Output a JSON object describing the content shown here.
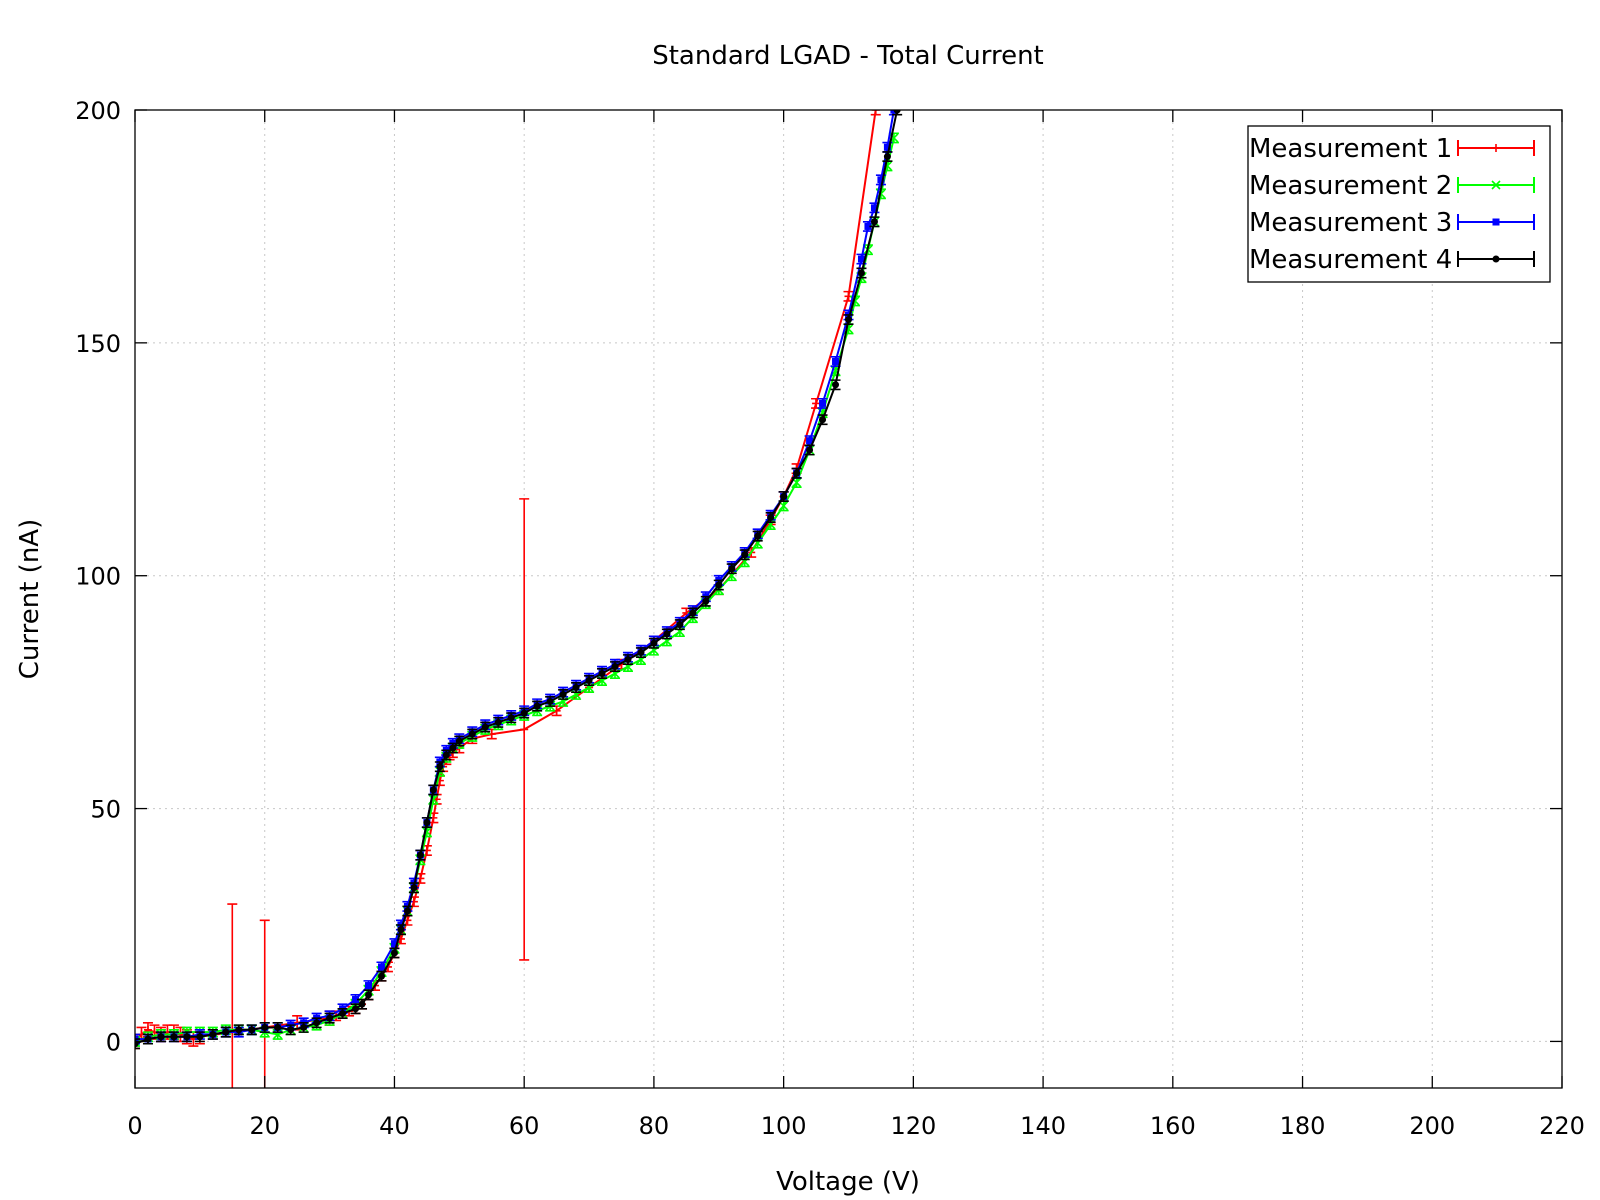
{
  "chart_data": {
    "type": "line",
    "title": "Standard LGAD - Total Current",
    "xlabel": "Voltage (V)",
    "ylabel": "Current (nA)",
    "xlim": [
      0,
      220
    ],
    "ylim": [
      -10,
      200
    ],
    "xticks": [
      "0",
      "20",
      "40",
      "60",
      "80",
      "100",
      "120",
      "140",
      "160",
      "180",
      "200",
      "220"
    ],
    "yticks": [
      "0",
      "50",
      "100",
      "150",
      "200"
    ],
    "grid": true,
    "legend_position": "top-right",
    "series": [
      {
        "name": "Measurement 1",
        "color": "#ff0000",
        "marker": "plus",
        "x": [
          0,
          1,
          2,
          3,
          4,
          5,
          6,
          7,
          8,
          9,
          10,
          15,
          20,
          25,
          30,
          31,
          32,
          33,
          34,
          35,
          36,
          37,
          38,
          39,
          40,
          41,
          42,
          43,
          44,
          45,
          46,
          46.5,
          47,
          47.5,
          48,
          48.5,
          49,
          50,
          52,
          55,
          60,
          65,
          70,
          75,
          80,
          85,
          90,
          95,
          98,
          100,
          102,
          105,
          110,
          114.2
        ],
        "y": [
          0,
          1.5,
          2.5,
          2,
          1.5,
          2,
          2,
          1.5,
          1,
          0.5,
          1,
          2,
          3,
          4,
          5,
          5.5,
          6,
          6.5,
          7,
          8,
          10,
          12,
          14,
          16,
          19,
          22,
          26,
          30,
          35,
          41,
          48,
          52,
          56,
          59,
          60.5,
          61.5,
          62,
          63,
          65,
          66,
          67,
          71,
          76,
          81,
          86,
          92,
          97,
          105,
          112,
          117,
          123,
          137,
          160,
          200
        ],
        "yerr": [
          1.5,
          1.5,
          1.5,
          1.5,
          1.5,
          1.5,
          1.5,
          1.5,
          1.5,
          1.5,
          1.5,
          27.5,
          23,
          1.5,
          1.5,
          1,
          1,
          1,
          1,
          1,
          1,
          1,
          1,
          1,
          1,
          1,
          1,
          1,
          1,
          1,
          1,
          1,
          1,
          1,
          1,
          1,
          1,
          1,
          1,
          1,
          49.5,
          1,
          1,
          1,
          1,
          1,
          1,
          1,
          1,
          1,
          1,
          1,
          1,
          1
        ]
      },
      {
        "name": "Measurement 2",
        "color": "#00ff00",
        "marker": "cross",
        "x": [
          0,
          2,
          4,
          6,
          8,
          10,
          12,
          14,
          16,
          18,
          20,
          22,
          24,
          26,
          28,
          30,
          32,
          34,
          36,
          38,
          40,
          41,
          42,
          43,
          44,
          45,
          46,
          47,
          48,
          49,
          50,
          52,
          54,
          56,
          58,
          60,
          62,
          64,
          66,
          68,
          70,
          72,
          74,
          76,
          78,
          80,
          82,
          84,
          86,
          88,
          90,
          92,
          94,
          96,
          98,
          100,
          102,
          104,
          106,
          108,
          110,
          111,
          112,
          113,
          114,
          115,
          116,
          117
        ],
        "y": [
          0,
          1,
          1.5,
          1.5,
          2,
          2,
          2,
          2.5,
          2.5,
          2.5,
          2,
          1.5,
          2.5,
          3,
          3.5,
          4.5,
          6,
          8,
          11,
          15,
          20,
          24,
          28,
          33,
          39,
          45,
          52,
          58,
          61,
          63,
          64,
          65.5,
          67,
          68,
          69,
          70,
          71,
          72,
          73,
          74.5,
          76,
          77.5,
          79,
          80.5,
          82,
          84,
          86,
          88,
          91,
          94,
          97,
          100,
          103,
          107,
          111,
          115,
          120,
          127,
          135,
          144,
          153,
          159,
          164,
          170,
          176,
          182,
          188,
          194
        ],
        "yerr": [
          1,
          1,
          1,
          1,
          1,
          1,
          1,
          1,
          1,
          1,
          1,
          1,
          1,
          1,
          1,
          1,
          1,
          1,
          1,
          1,
          1,
          1,
          1,
          1,
          1,
          1,
          1,
          1,
          1,
          1,
          1,
          1,
          1,
          1,
          1,
          1,
          1,
          1,
          1,
          1,
          1,
          1,
          1,
          1,
          1,
          1,
          1,
          1,
          1,
          1,
          1,
          1,
          1,
          1,
          1,
          1,
          1,
          1,
          1,
          1,
          1,
          1,
          1,
          1,
          1,
          1,
          1,
          1
        ]
      },
      {
        "name": "Measurement 3",
        "color": "#0000ff",
        "marker": "square",
        "x": [
          0,
          2,
          4,
          6,
          8,
          10,
          12,
          14,
          16,
          18,
          20,
          22,
          24,
          26,
          28,
          30,
          32,
          34,
          36,
          38,
          40,
          41,
          42,
          43,
          44,
          45,
          46,
          47,
          48,
          49,
          50,
          52,
          54,
          56,
          58,
          60,
          62,
          64,
          66,
          68,
          70,
          72,
          74,
          76,
          78,
          80,
          82,
          84,
          86,
          88,
          90,
          92,
          94,
          96,
          98,
          100,
          102,
          104,
          106,
          108,
          110,
          112,
          113,
          114,
          115,
          116,
          117
        ],
        "y": [
          0.5,
          0.5,
          1,
          1,
          1,
          1.5,
          1.5,
          2,
          2,
          2.5,
          3,
          3,
          3.5,
          4,
          5,
          5.5,
          7,
          9,
          12,
          16,
          21,
          25,
          29,
          34,
          40,
          47,
          54,
          60,
          62.5,
          64,
          65,
          66.5,
          68,
          69,
          70,
          71,
          72.5,
          73.5,
          75,
          76.5,
          78,
          79.5,
          81,
          82.5,
          84,
          86,
          88,
          90,
          92.5,
          95.5,
          99,
          102,
          105,
          109,
          113,
          117,
          122,
          129,
          137,
          146,
          156,
          168,
          175,
          179,
          185,
          192,
          200
        ],
        "yerr": [
          1,
          1,
          1,
          1,
          1,
          1,
          1,
          1,
          1,
          1,
          1,
          1,
          1,
          1,
          1,
          1,
          1,
          1,
          1,
          1,
          1,
          1,
          1,
          1,
          1,
          1,
          1,
          1,
          1,
          1,
          1,
          1,
          1,
          1,
          1,
          1,
          1,
          1,
          1,
          1,
          1,
          1,
          1,
          1,
          1,
          1,
          1,
          1,
          1,
          1,
          1,
          1,
          1,
          1,
          1,
          1,
          1,
          1,
          1,
          1,
          1,
          1,
          1,
          1,
          1,
          1,
          1
        ]
      },
      {
        "name": "Measurement 4",
        "color": "#000000",
        "marker": "circle",
        "x": [
          0,
          2,
          4,
          6,
          8,
          10,
          12,
          14,
          16,
          18,
          20,
          22,
          24,
          26,
          28,
          30,
          32,
          34,
          35,
          36,
          38,
          40,
          41,
          42,
          43,
          44,
          45,
          46,
          47,
          48,
          49,
          50,
          52,
          54,
          56,
          58,
          60,
          62,
          64,
          66,
          68,
          70,
          72,
          74,
          76,
          78,
          80,
          82,
          84,
          86,
          88,
          90,
          92,
          94,
          96,
          98,
          100,
          102,
          104,
          106,
          108,
          110,
          112,
          114,
          116,
          117.5
        ],
        "y": [
          -0.5,
          0.5,
          1,
          1,
          1,
          1,
          1.5,
          2,
          2.5,
          2.5,
          3,
          3,
          2.5,
          3,
          4,
          5,
          6,
          7,
          8,
          10,
          14,
          19,
          24,
          28,
          33,
          40,
          47,
          54,
          59,
          61.5,
          63,
          64.5,
          66,
          67.5,
          68.5,
          69.5,
          70.5,
          72,
          73,
          74.5,
          76,
          77.5,
          79,
          80.5,
          82,
          83.5,
          85.5,
          87.5,
          89.5,
          92,
          94.5,
          98,
          101.5,
          104.5,
          108.5,
          112.5,
          117,
          122,
          127,
          133.5,
          141,
          155,
          165,
          176,
          190,
          200
        ],
        "yerr": [
          1,
          1,
          1,
          1,
          1,
          1,
          1,
          1,
          1,
          1,
          1,
          1,
          1,
          1,
          1,
          1,
          1,
          1,
          1,
          1,
          1,
          1,
          1,
          1,
          1,
          1,
          1,
          1,
          1,
          1,
          1,
          1,
          1,
          1,
          1,
          1,
          1,
          1,
          1,
          1,
          1,
          1,
          1,
          1,
          1,
          1,
          1,
          1,
          1,
          1,
          1,
          1,
          1,
          1,
          1,
          1,
          1,
          1,
          1,
          1,
          1,
          1,
          1,
          1,
          1,
          1
        ]
      }
    ]
  }
}
